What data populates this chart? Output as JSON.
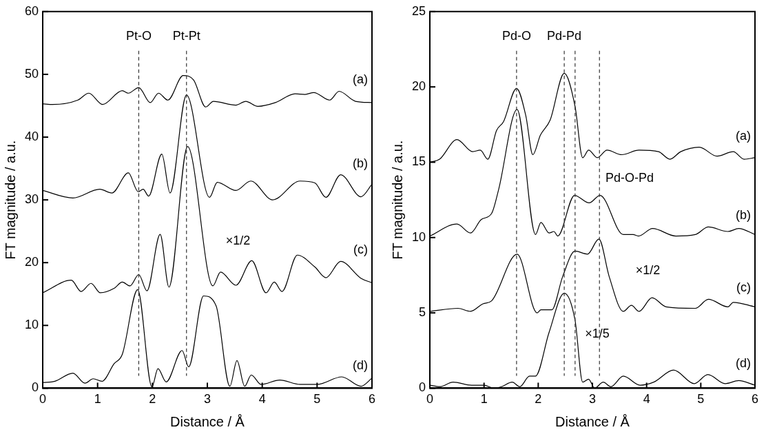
{
  "chart_data": [
    {
      "type": "line",
      "xlabel": "Distance / Å",
      "ylabel": "FT magnitude / a.u.",
      "xlim": [
        0,
        6
      ],
      "xticks": [
        0,
        1,
        2,
        3,
        4,
        5,
        6
      ],
      "ylim": [
        0,
        60
      ],
      "yticks": [
        0,
        10,
        20,
        30,
        40,
        50,
        60
      ],
      "grid": false,
      "legend": false,
      "marker": "none",
      "line_style": "solid",
      "series": [
        {
          "name": "(a)",
          "color": "#000000",
          "x": [
            0,
            0.18,
            0.64,
            0.84,
            1.09,
            1.45,
            1.56,
            1.75,
            1.96,
            2.11,
            2.28,
            2.56,
            2.75,
            2.97,
            3.11,
            3.52,
            3.7,
            3.92,
            4.24,
            4.6,
            4.78,
            4.94,
            5.23,
            5.4,
            5.7,
            6
          ],
          "values": [
            45.3,
            45.2,
            45.9,
            47.0,
            45.2,
            47.4,
            47.0,
            47.9,
            45.5,
            47.0,
            45.9,
            49.8,
            49.1,
            44.8,
            45.7,
            45.1,
            45.7,
            44.9,
            45.5,
            46.9,
            46.8,
            47.1,
            45.9,
            47.3,
            45.7,
            45.5
          ]
        },
        {
          "name": "(b)",
          "color": "#000000",
          "x": [
            0,
            0.55,
            1.04,
            1.26,
            1.56,
            1.74,
            1.83,
            1.93,
            2.17,
            2.32,
            2.62,
            3.04,
            3.18,
            3.52,
            3.79,
            4.19,
            4.69,
            4.96,
            5.16,
            5.43,
            5.8,
            6
          ],
          "values": [
            31.5,
            30.3,
            31.7,
            31.1,
            34.3,
            31.3,
            31.7,
            30.6,
            37.3,
            31.1,
            46.7,
            30.4,
            32.8,
            31.5,
            33.0,
            30.0,
            33.0,
            32.7,
            30.4,
            34.0,
            30.5,
            32.5
          ]
        },
        {
          "name": "(c)",
          "color": "#000000",
          "x": [
            0,
            0.52,
            0.7,
            0.88,
            1.05,
            1.3,
            1.45,
            1.59,
            1.75,
            1.9,
            2.14,
            2.3,
            2.64,
            3.1,
            3.24,
            3.52,
            3.81,
            4.07,
            4.22,
            4.36,
            4.64,
            4.96,
            5.16,
            5.43,
            5.8,
            6
          ],
          "values": [
            15.2,
            17.2,
            15.4,
            16.7,
            15.2,
            15.9,
            16.9,
            16.3,
            18.1,
            15.5,
            24.5,
            16.1,
            38.5,
            16.3,
            18.5,
            16.4,
            20.3,
            15.2,
            16.9,
            15.4,
            21.2,
            19.3,
            17.6,
            20.2,
            17.5,
            16.8
          ]
        },
        {
          "name": "(d)",
          "color": "#000000",
          "x": [
            0,
            0.22,
            0.55,
            0.77,
            0.92,
            1.08,
            1.3,
            1.45,
            1.73,
            1.99,
            2.1,
            2.25,
            2.54,
            2.66,
            2.93,
            3.16,
            3.41,
            3.54,
            3.68,
            3.8,
            3.98,
            4.32,
            4.69,
            5.0,
            5.45,
            5.8,
            6
          ],
          "values": [
            0.9,
            1.1,
            2.4,
            0.8,
            1.5,
            1.1,
            3.9,
            5.4,
            15.7,
            0.2,
            3.1,
            1.0,
            6.0,
            3.4,
            14.7,
            13.1,
            0.3,
            4.4,
            0.3,
            2.1,
            0.6,
            1.3,
            0.6,
            0.6,
            1.8,
            0.3,
            1.6
          ]
        }
      ],
      "ref_lines": [
        {
          "axis": "x",
          "value": 1.75,
          "label": "Pt-O",
          "color": "#333333",
          "line_style": "dashed"
        },
        {
          "axis": "x",
          "value": 2.62,
          "label": "Pt-Pt",
          "color": "#333333",
          "line_style": "dashed"
        }
      ],
      "annotations": [
        "×1/2"
      ]
    },
    {
      "type": "line",
      "xlabel": "Distance / Å",
      "ylabel": "FT magnitude / a.u.",
      "xlim": [
        0,
        6
      ],
      "xticks": [
        0,
        1,
        2,
        3,
        4,
        5,
        6
      ],
      "ylim": [
        0,
        25
      ],
      "yticks": [
        0,
        5,
        10,
        15,
        20,
        25
      ],
      "grid": false,
      "legend": false,
      "marker": "none",
      "line_style": "solid",
      "series": [
        {
          "name": "(a)",
          "color": "#000000",
          "x": [
            0,
            0.18,
            0.5,
            0.79,
            0.93,
            1.07,
            1.23,
            1.36,
            1.6,
            1.77,
            1.9,
            2.04,
            2.22,
            2.48,
            2.68,
            2.82,
            2.93,
            3.09,
            3.27,
            3.54,
            3.86,
            4.22,
            4.43,
            4.63,
            4.97,
            5.3,
            5.6,
            5.8,
            6
          ],
          "values": [
            15.0,
            15.2,
            16.5,
            15.7,
            15.8,
            15.2,
            17.1,
            17.7,
            19.9,
            18.1,
            15.5,
            16.8,
            17.8,
            20.9,
            18.7,
            15.3,
            15.8,
            15.3,
            15.8,
            15.5,
            15.8,
            15.7,
            15.2,
            15.7,
            16.0,
            15.4,
            15.7,
            15.2,
            15.3
          ]
        },
        {
          "name": "(b)",
          "color": "#000000",
          "x": [
            0,
            0.5,
            0.75,
            0.95,
            1.14,
            1.27,
            1.61,
            1.95,
            2.05,
            2.2,
            2.29,
            2.36,
            2.67,
            2.94,
            3.14,
            3.57,
            3.75,
            3.85,
            4.11,
            4.54,
            4.9,
            5.14,
            5.5,
            5.7,
            6
          ],
          "values": [
            10.1,
            10.9,
            10.3,
            11.2,
            11.6,
            13.2,
            18.5,
            10.2,
            11.0,
            10.3,
            10.4,
            10.1,
            12.8,
            12.3,
            12.8,
            10.2,
            10.2,
            10.1,
            10.6,
            10.1,
            10.2,
            10.7,
            10.4,
            10.6,
            10.2
          ]
        },
        {
          "name": "(c)",
          "color": "#000000",
          "x": [
            0,
            0.52,
            0.75,
            0.98,
            1.14,
            1.61,
            1.98,
            2.05,
            2.25,
            2.45,
            2.68,
            2.91,
            3.12,
            3.31,
            3.57,
            3.72,
            3.86,
            4.1,
            4.36,
            4.9,
            5.14,
            5.5,
            5.6,
            6
          ],
          "values": [
            5.1,
            5.3,
            5.1,
            5.6,
            5.8,
            8.9,
            5.0,
            5.2,
            5.2,
            7.4,
            9.1,
            8.9,
            9.9,
            7.4,
            5.1,
            5.5,
            5.1,
            6.0,
            5.4,
            5.3,
            5.9,
            5.4,
            5.7,
            5.4
          ]
        },
        {
          "name": "(d)",
          "color": "#000000",
          "x": [
            0,
            0.18,
            0.43,
            0.77,
            1.0,
            1.18,
            1.32,
            1.52,
            1.66,
            1.84,
            1.95,
            2.2,
            2.48,
            2.68,
            2.82,
            2.93,
            3.04,
            3.2,
            3.34,
            3.57,
            3.88,
            4.13,
            4.5,
            4.88,
            5.13,
            5.45,
            5.7,
            6
          ],
          "values": [
            0.2,
            0.1,
            0.4,
            0.2,
            0.2,
            0.0,
            0.1,
            0.4,
            0.1,
            0.8,
            0.8,
            3.7,
            6.3,
            4.5,
            0.4,
            0.6,
            0.0,
            0.4,
            0.1,
            0.8,
            0.2,
            0.4,
            1.2,
            0.3,
            0.9,
            0.3,
            0.5,
            0.2
          ]
        }
      ],
      "ref_lines": [
        {
          "axis": "x",
          "value": 1.6,
          "label": "Pd-O",
          "color": "#333333",
          "line_style": "dashed"
        },
        {
          "axis": "x",
          "value": 2.48,
          "label": "Pd-Pd",
          "color": "#333333",
          "line_style": "dashed"
        },
        {
          "axis": "x",
          "value": 2.68,
          "color": "#333333",
          "line_style": "dashed"
        },
        {
          "axis": "x",
          "value": 3.13,
          "color": "#333333",
          "line_style": "dashed"
        }
      ],
      "annotations": [
        "Pd-O-Pd",
        "×1/2",
        "×1/5"
      ]
    }
  ]
}
